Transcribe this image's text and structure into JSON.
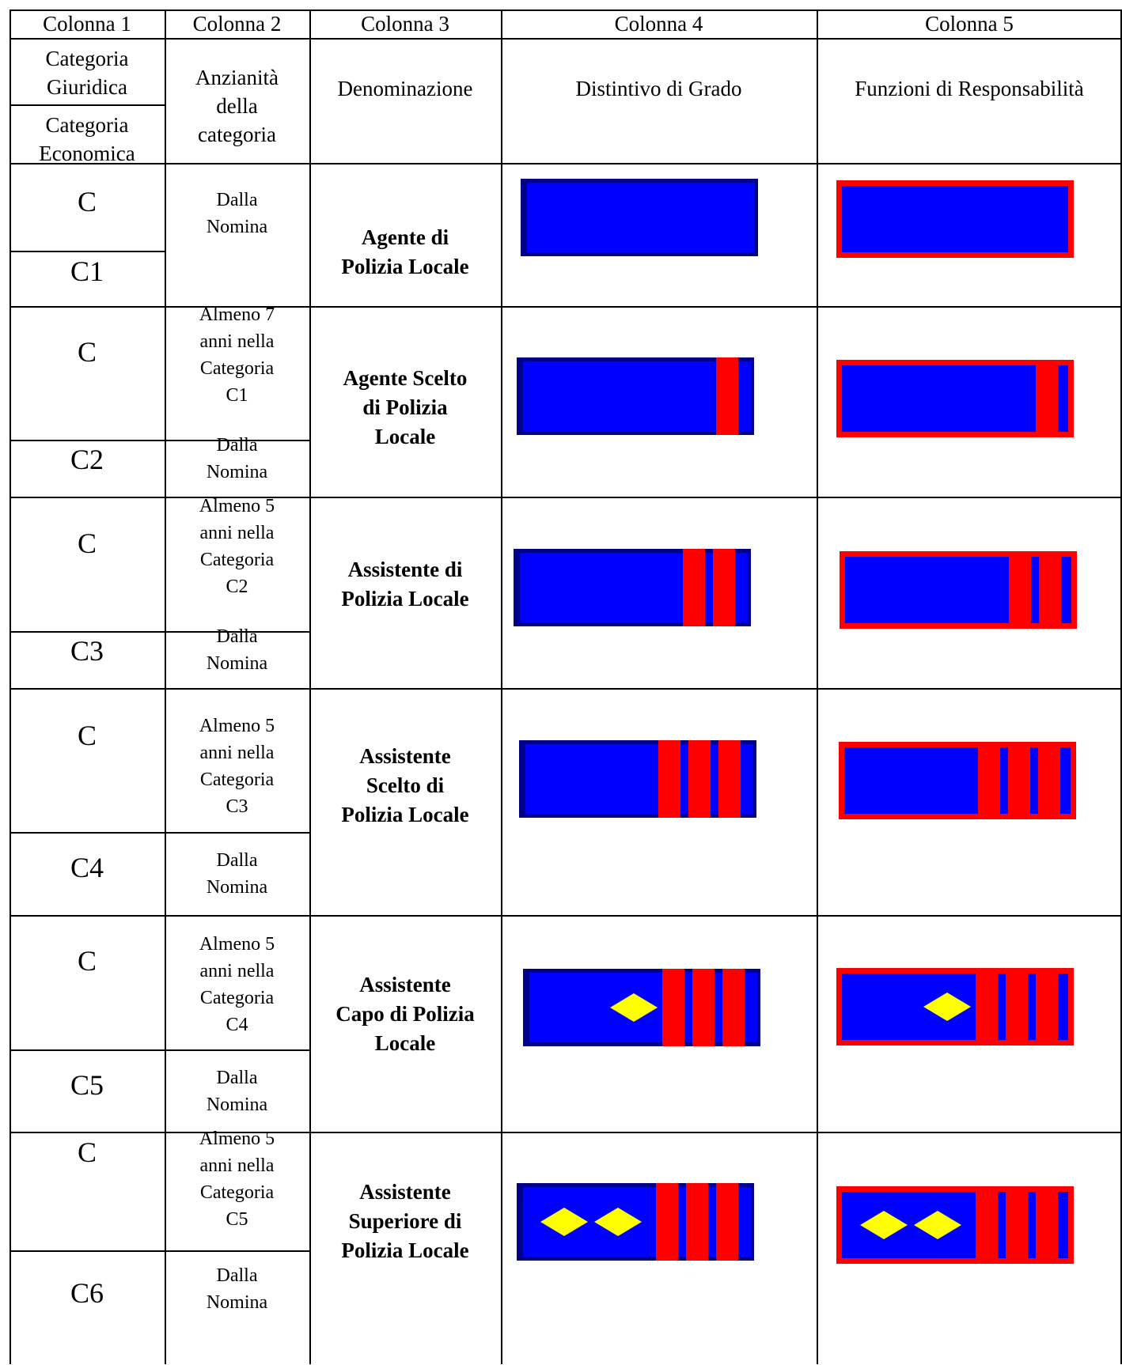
{
  "headers": {
    "col1": "Colonna 1",
    "col2": "Colonna 2",
    "col3": "Colonna 3",
    "col4": "Colonna 4",
    "col5": "Colonna 5"
  },
  "subheaders": {
    "categoria_giuridica": "Categoria\nGiuridica",
    "categoria_economica": "Categoria\nEconomica",
    "anzianita": "Anzianità\ndella\ncategoria",
    "denominazione": "Denominazione",
    "distintivo": "Distintivo di Grado",
    "funzioni": "Funzioni di Responsabilità"
  },
  "rows": [
    {
      "giuridica": "C",
      "economica": "C1",
      "anzianita_top": "Dalla\nNomina",
      "anzianita_bottom": "",
      "denominazione": "Agente di\nPolizia Locale",
      "bars": 0,
      "diamonds": 0
    },
    {
      "giuridica": "C",
      "economica": "C2",
      "anzianita_top": "Almeno 7\nanni nella\nCategoria\nC1",
      "anzianita_bottom": "Dalla\nNomina",
      "denominazione": "Agente Scelto\ndi Polizia\nLocale",
      "bars": 1,
      "diamonds": 0
    },
    {
      "giuridica": "C",
      "economica": "C3",
      "anzianita_top": "Almeno 5\nanni nella\nCategoria\nC2",
      "anzianita_bottom": "Dalla\nNomina",
      "denominazione": "Assistente di\nPolizia Locale",
      "bars": 2,
      "diamonds": 0
    },
    {
      "giuridica": "C",
      "economica": "C4",
      "anzianita_top": "Almeno 5\nanni nella\nCategoria\nC3",
      "anzianita_bottom": "Dalla\nNomina",
      "denominazione": "Assistente\nScelto di\nPolizia Locale",
      "bars": 3,
      "diamonds": 0
    },
    {
      "giuridica": "C",
      "economica": "C5",
      "anzianita_top": "Almeno 5\nanni nella\nCategoria\nC4",
      "anzianita_bottom": "Dalla\nNomina",
      "denominazione": "Assistente\nCapo di Polizia\nLocale",
      "bars": 3,
      "diamonds": 1
    },
    {
      "giuridica": "C",
      "economica": "C6",
      "anzianita_top": "Almeno 5\nanni nella\nCategoria\nC5",
      "anzianita_bottom": "Dalla\nNomina",
      "denominazione": "Assistente\nSuperiore di\nPolizia Locale",
      "bars": 3,
      "diamonds": 2
    }
  ],
  "colors": {
    "badge_blue": "#0000ff",
    "badge_border_navy": "#00008b",
    "badge_red": "#ff0000",
    "diamond_yellow": "#ffff00"
  }
}
